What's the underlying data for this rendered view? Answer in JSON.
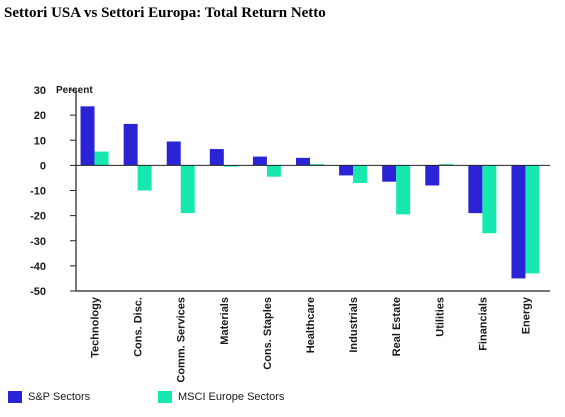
{
  "page": {
    "title": "Settori USA vs Settori Europa: Total Return Netto"
  },
  "chart_data": {
    "type": "bar",
    "ylabel": "Percent",
    "ylim": [
      -50,
      30
    ],
    "yticks": [
      30,
      20,
      10,
      0,
      -10,
      -20,
      -30,
      -40,
      -50
    ],
    "ytick_labels": [
      "30",
      "20",
      "10",
      "0",
      "-10",
      "-20",
      "-30",
      "-40",
      "-50"
    ],
    "grid": false,
    "legend_position": "bottom-left",
    "categories": [
      "Technology",
      "Cons. Disc.",
      "Comm. Services",
      "Materials",
      "Cons. Staples",
      "Healthcare",
      "Industrials",
      "Real Estate",
      "Utilities",
      "Financials",
      "Energy"
    ],
    "series": [
      {
        "name": "S&P Sectors",
        "color": "#2b24d6",
        "values": [
          23.5,
          16.5,
          9.5,
          6.5,
          3.5,
          3.0,
          -4.0,
          -6.5,
          -8.0,
          -19.0,
          -45.0
        ]
      },
      {
        "name": "MSCI Europe Sectors",
        "color": "#17e8b0",
        "values": [
          5.5,
          -10.0,
          -19.0,
          -0.5,
          -4.5,
          0.5,
          -7.0,
          -19.5,
          0.5,
          -27.0,
          -43.0
        ]
      }
    ]
  }
}
